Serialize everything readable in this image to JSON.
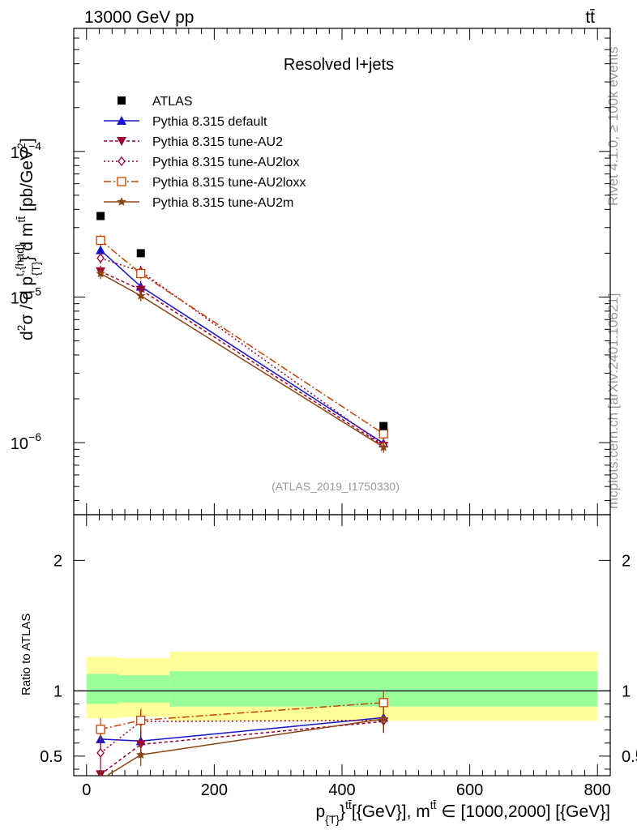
{
  "header": {
    "left": "13000 GeV pp",
    "right": "tt̄"
  },
  "side_labels": {
    "top": "Rivet 4.1.0, ≥ 100k events",
    "bottom": "mcplots.cern.ch [arXiv:2401.10621]"
  },
  "chart_data": {
    "type": "line",
    "title": "Resolved l+jets",
    "analysis": "(ATLAS_2019_I1750330)",
    "xlabel": "p_{T}^{tt̄} [GeV], m^{tt̄} ∈ [1000,2000] [GeV]",
    "xlabel_parts": {
      "a": "p",
      "b": "{T}",
      "c": "}",
      "d": "tt̄",
      "e": "[{GeV}], m",
      "f": "tt̄",
      "g": " ∈ [1000,2000] [{GeV}]"
    },
    "ylabel_main": "d²σ / d p^{t,{had}}_{T} d m^{tt̄} [pb/GeV²]",
    "ylabel_parts": {
      "a": "d",
      "b": "2",
      "c": "σ / d p",
      "d": "t,{had}",
      "e": "{T}",
      "f": "} d m",
      "g": "tt̄",
      "h": " [pb/GeV",
      "i": "2",
      "j": "]"
    },
    "ylabel_ratio": "Ratio to ATLAS",
    "xlim": [
      -20,
      820
    ],
    "ylim_main": [
      3.2e-07,
      0.0007
    ],
    "ylim_ratio": [
      0.35,
      2.35
    ],
    "x_ticks": [
      0,
      200,
      400,
      600,
      800
    ],
    "x_tick_labels": [
      "0",
      "200",
      "400",
      "600",
      "800"
    ],
    "y_ticks_main": [
      1e-06,
      1e-05,
      0.0001
    ],
    "y_tick_labels_main": [
      {
        "base": "10",
        "exp": "−6"
      },
      {
        "base": "10",
        "exp": "−5"
      },
      {
        "base": "10",
        "exp": "−4"
      }
    ],
    "y_ticks_ratio": [
      0.5,
      1,
      2
    ],
    "y_tick_labels_ratio": [
      "0.5",
      "1",
      "2"
    ],
    "bin_edges": [
      0,
      50,
      130,
      800
    ],
    "band_yellow_ratio": [
      [
        0.79,
        1.26
      ],
      [
        0.8,
        1.25
      ],
      [
        0.77,
        1.3
      ]
    ],
    "band_green_ratio": [
      [
        0.9,
        1.13
      ],
      [
        0.91,
        1.12
      ],
      [
        0.88,
        1.15
      ]
    ],
    "x": [
      22,
      85,
      465
    ],
    "data": {
      "name": "ATLAS",
      "color": "#000000",
      "values": [
        3.6e-05,
        2e-05,
        1.3e-06
      ]
    },
    "series": [
      {
        "name": "Pythia 8.315 default",
        "color": "#1515cc",
        "dash": "",
        "marker": "triangle-up",
        "values": [
          2.1e-05,
          1.18e-05,
          9.9e-07
        ],
        "ratio": [
          0.63,
          0.615,
          0.795
        ]
      },
      {
        "name": "Pythia 8.315 tune-AU2",
        "color": "#990033",
        "dash": "4,3",
        "marker": "triangle-down",
        "values": [
          1.5e-05,
          1.12e-05,
          9.5e-07
        ],
        "ratio": [
          0.36,
          0.59,
          0.765
        ]
      },
      {
        "name": "Pythia 8.315 tune-AU2lox",
        "color": "#990033",
        "dash": "2,3",
        "marker": "diamond-open",
        "values": [
          1.85e-05,
          1.5e-05,
          9.6e-07
        ],
        "ratio": [
          0.525,
          0.765,
          0.775
        ]
      },
      {
        "name": "Pythia 8.315 tune-AU2loxx",
        "color": "#c04400",
        "dash": "9,3,2,3",
        "marker": "square-open",
        "values": [
          2.45e-05,
          1.45e-05,
          1.15e-06
        ],
        "ratio": [
          0.705,
          0.775,
          0.91
        ]
      },
      {
        "name": "Pythia 8.315 tune-AU2m",
        "color": "#8b4513",
        "dash": "",
        "marker": "star",
        "values": [
          1.45e-05,
          1.02e-05,
          9.3e-07
        ],
        "ratio": [
          0.32,
          0.51,
          0.785
        ]
      }
    ]
  }
}
